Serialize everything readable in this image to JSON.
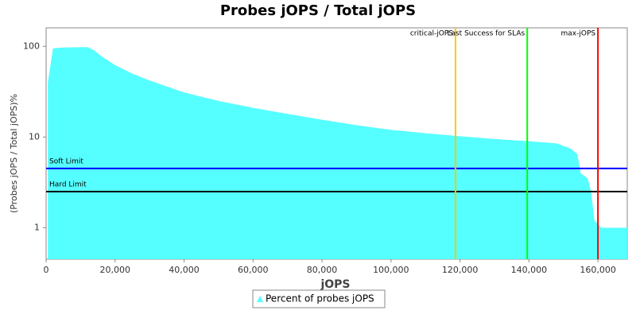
{
  "chart_data": {
    "type": "area",
    "title": "Probes jOPS / Total jOPS",
    "x_label": "jOPS",
    "y_label": "(Probes jOPS / Total jOPS)%",
    "log_y": true,
    "xlim": [
      0,
      168500
    ],
    "ylim": [
      0.45,
      160
    ],
    "xticks": [
      0,
      {
        "value": 20000,
        "label": "20,000"
      },
      {
        "value": 40000,
        "label": "40,000"
      },
      {
        "value": 60000,
        "label": "60,000"
      },
      {
        "value": 80000,
        "label": "80,000"
      },
      {
        "value": 100000,
        "label": "100,000"
      },
      {
        "value": 120000,
        "label": "120,000"
      },
      {
        "value": 140000,
        "label": "140,000"
      },
      {
        "value": 160000,
        "label": "160,000"
      }
    ],
    "yticks": [
      1,
      10,
      100
    ],
    "series": [
      {
        "name": "Percent of probes jOPS",
        "color": "#55ffff",
        "x": [
          500,
          2000,
          5000,
          12000,
          14000,
          16000,
          20000,
          25000,
          30000,
          40000,
          50000,
          60000,
          70000,
          80000,
          90000,
          100000,
          110000,
          120000,
          130000,
          140000,
          148000,
          152000,
          154000,
          155000,
          157000,
          158000,
          159000,
          161000,
          168500
        ],
        "values": [
          40,
          95,
          97,
          98,
          90,
          78,
          62,
          50,
          42,
          31,
          25,
          21,
          18,
          15.5,
          13.5,
          12,
          11,
          10.2,
          9.5,
          9,
          8.5,
          7.5,
          6.5,
          4,
          3.5,
          2.5,
          1.2,
          1.0,
          1.0
        ]
      }
    ],
    "hlines": [
      {
        "name": "Soft Limit",
        "value": 4.5,
        "color": "#0000ff"
      },
      {
        "name": "Hard Limit",
        "value": 2.5,
        "color": "#000000"
      }
    ],
    "vlines": [
      {
        "name": "critical-jOPS",
        "value": 118700,
        "color": "#ffc800"
      },
      {
        "name": "Last Success for SLAs",
        "value": 139500,
        "color": "#00ff00"
      },
      {
        "name": "max-jOPS",
        "value": 160000,
        "color": "#ff0000"
      }
    ]
  }
}
